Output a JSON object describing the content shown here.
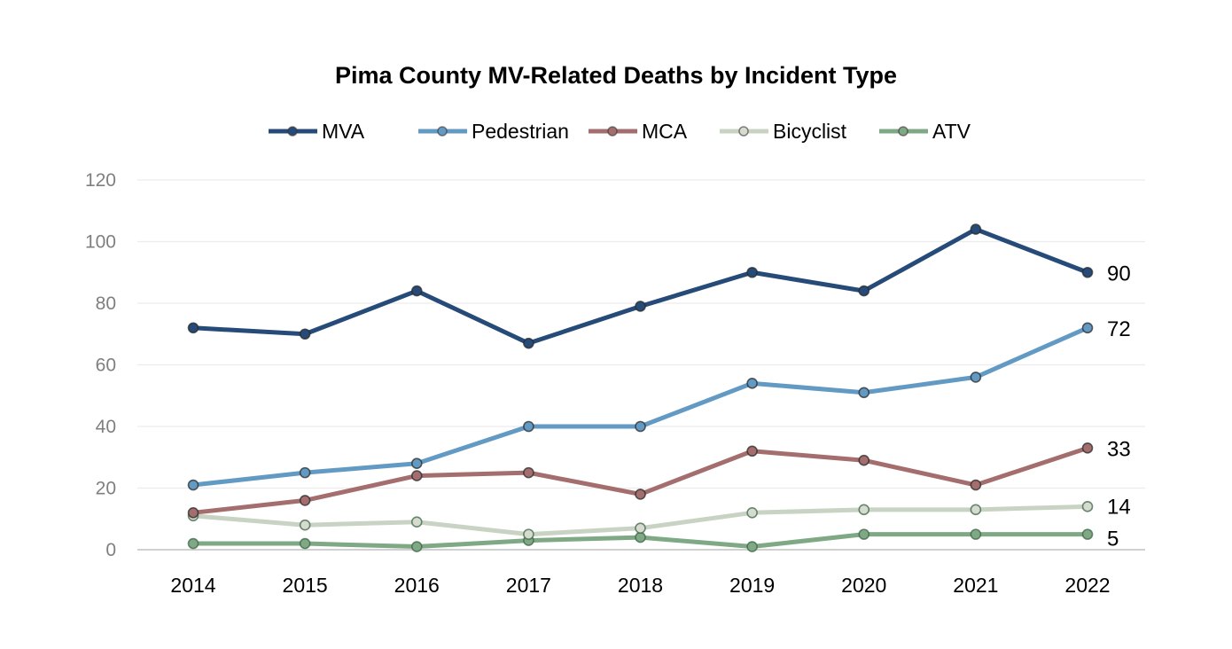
{
  "chart_data": {
    "type": "line",
    "title": "Pima County MV-Related Deaths by Incident Type",
    "xlabel": "",
    "ylabel": "",
    "x": [
      "2014",
      "2015",
      "2016",
      "2017",
      "2018",
      "2019",
      "2020",
      "2021",
      "2022"
    ],
    "ylim": [
      0,
      120
    ],
    "yticks": [
      0,
      20,
      40,
      60,
      80,
      100,
      120
    ],
    "grid": true,
    "legend_position": "top",
    "series": [
      {
        "name": "MVA",
        "color": "#264b78",
        "marker": "#264b78",
        "values": [
          72,
          70,
          84,
          67,
          79,
          90,
          84,
          104,
          90
        ],
        "end_label": "90"
      },
      {
        "name": "Pedestrian",
        "color": "#639ac4",
        "marker": "#639ac4",
        "values": [
          21,
          25,
          28,
          40,
          40,
          54,
          51,
          56,
          72
        ],
        "end_label": "72"
      },
      {
        "name": "MCA",
        "color": "#a46e6e",
        "marker": "#a46e6e",
        "values": [
          12,
          16,
          24,
          25,
          18,
          32,
          29,
          21,
          33
        ],
        "end_label": "33"
      },
      {
        "name": "Bicyclist",
        "color": "#c8d3c3",
        "marker": "#d5dccf",
        "values": [
          11,
          8,
          9,
          5,
          7,
          12,
          13,
          13,
          14
        ],
        "end_label": "14"
      },
      {
        "name": "ATV",
        "color": "#7fa985",
        "marker": "#7fa985",
        "values": [
          2,
          2,
          1,
          3,
          4,
          1,
          5,
          5,
          5
        ],
        "end_label": "5"
      }
    ]
  }
}
